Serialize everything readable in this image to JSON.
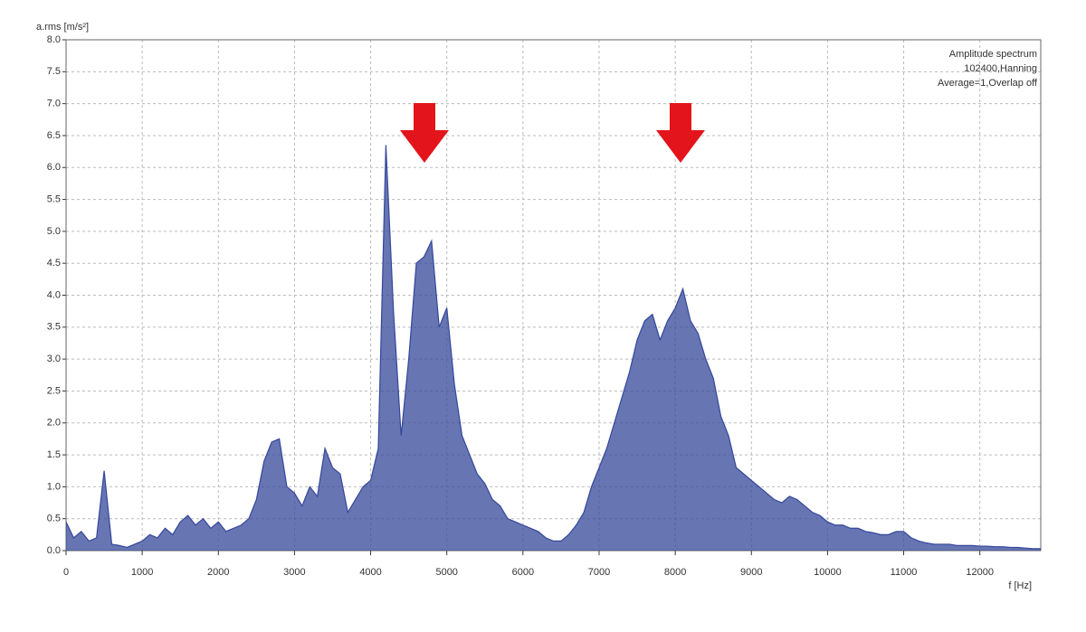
{
  "chart_data": {
    "type": "line",
    "y_label": "a.rms [m/s²]",
    "x_label": "f [Hz]",
    "annotations": [
      "Amplitude spectrum",
      "102400,Hanning",
      "Average=1,Overlap off"
    ],
    "color": "#34479a",
    "grid": true,
    "xlim": [
      0,
      12800
    ],
    "ylim": [
      0,
      8
    ],
    "xticks": [
      0,
      1000,
      2000,
      3000,
      4000,
      5000,
      6000,
      7000,
      8000,
      9000,
      10000,
      11000,
      12000
    ],
    "yticks": [
      {
        "value": 0,
        "label": "0.0"
      },
      0.5,
      {
        "value": 1,
        "label": "1.0"
      },
      1.5,
      {
        "value": 2,
        "label": "2.0"
      },
      2.5,
      {
        "value": 3,
        "label": "3.0"
      },
      3.5,
      {
        "value": 4,
        "label": "4.0"
      },
      4.5,
      {
        "value": 5,
        "label": "5.0"
      },
      5.5,
      {
        "value": 6,
        "label": "6.0"
      },
      6.5,
      {
        "value": 7,
        "label": "7.0"
      },
      7.5,
      {
        "value": 8,
        "label": "8.0"
      }
    ],
    "x": [
      0,
      100,
      200,
      300,
      400,
      500,
      600,
      700,
      800,
      900,
      1000,
      1100,
      1200,
      1300,
      1400,
      1500,
      1600,
      1700,
      1800,
      1900,
      2000,
      2100,
      2200,
      2300,
      2400,
      2500,
      2600,
      2700,
      2800,
      2900,
      3000,
      3100,
      3200,
      3300,
      3400,
      3500,
      3600,
      3700,
      3800,
      3900,
      4000,
      4100,
      4200,
      4300,
      4400,
      4500,
      4600,
      4700,
      4800,
      4900,
      5000,
      5100,
      5200,
      5300,
      5400,
      5500,
      5600,
      5700,
      5800,
      5900,
      6000,
      6100,
      6200,
      6300,
      6400,
      6500,
      6600,
      6700,
      6800,
      6900,
      7000,
      7100,
      7200,
      7300,
      7400,
      7500,
      7600,
      7700,
      7800,
      7900,
      8000,
      8100,
      8200,
      8300,
      8400,
      8500,
      8600,
      8700,
      8800,
      8900,
      9000,
      9100,
      9200,
      9300,
      9400,
      9500,
      9600,
      9700,
      9800,
      9900,
      10000,
      10100,
      10200,
      10300,
      10400,
      10500,
      10600,
      10700,
      10800,
      10900,
      11000,
      11100,
      11200,
      11300,
      11400,
      11500,
      11600,
      11700,
      11800,
      11900,
      12000,
      12100,
      12200,
      12300,
      12400,
      12500,
      12600,
      12700,
      12800
    ],
    "values": [
      0.45,
      0.2,
      0.3,
      0.15,
      0.2,
      1.25,
      0.1,
      0.08,
      0.05,
      0.1,
      0.15,
      0.25,
      0.2,
      0.35,
      0.25,
      0.45,
      0.55,
      0.4,
      0.5,
      0.35,
      0.45,
      0.3,
      0.35,
      0.4,
      0.5,
      0.8,
      1.4,
      1.7,
      1.75,
      1.0,
      0.9,
      0.7,
      1.0,
      0.85,
      1.6,
      1.3,
      1.2,
      0.6,
      0.8,
      1.0,
      1.1,
      1.6,
      6.35,
      3.75,
      1.8,
      3.0,
      4.5,
      4.6,
      4.85,
      3.5,
      3.8,
      2.6,
      1.8,
      1.5,
      1.2,
      1.05,
      0.8,
      0.7,
      0.5,
      0.45,
      0.4,
      0.35,
      0.3,
      0.2,
      0.15,
      0.15,
      0.25,
      0.4,
      0.6,
      1.0,
      1.3,
      1.6,
      2.0,
      2.4,
      2.8,
      3.3,
      3.6,
      3.7,
      3.3,
      3.6,
      3.8,
      4.1,
      3.6,
      3.4,
      3.0,
      2.7,
      2.1,
      1.8,
      1.3,
      1.2,
      1.1,
      1.0,
      0.9,
      0.8,
      0.75,
      0.85,
      0.8,
      0.7,
      0.6,
      0.55,
      0.45,
      0.4,
      0.4,
      0.35,
      0.35,
      0.3,
      0.28,
      0.25,
      0.25,
      0.3,
      0.3,
      0.2,
      0.15,
      0.12,
      0.1,
      0.1,
      0.1,
      0.08,
      0.08,
      0.08,
      0.07,
      0.07,
      0.06,
      0.06,
      0.05,
      0.05,
      0.04,
      0.03,
      0.03
    ]
  }
}
